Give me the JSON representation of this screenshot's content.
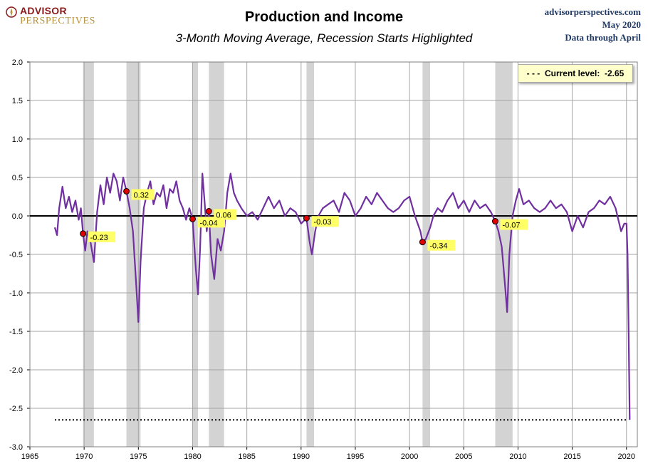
{
  "header": {
    "logo_line1": "ADVISOR",
    "logo_line2": "PERSPECTIVES",
    "title": "Production and Income",
    "subtitle": "3-Month Moving Average, Recession Starts Highlighted",
    "source_site": "advisorperspectives.com",
    "source_date": "May 2020",
    "source_note": "Data through April"
  },
  "legend": {
    "current_prefix": "- - -  Current level:  ",
    "current_value": "-2.65"
  },
  "colors": {
    "line": "#7030a0",
    "recession": "#d3d3d3",
    "label_bg": "#ffff66",
    "marker": "#e00000"
  },
  "chart_data": {
    "type": "line",
    "title": "Production and Income",
    "xlim": [
      1965,
      2021
    ],
    "ylim": [
      -3.0,
      2.0
    ],
    "x_ticks": [
      1965,
      1970,
      1975,
      1980,
      1985,
      1990,
      1995,
      2000,
      2005,
      2010,
      2015,
      2020
    ],
    "y_ticks": [
      -3.0,
      -2.5,
      -2.0,
      -1.5,
      -1.0,
      -0.5,
      0.0,
      0.5,
      1.0,
      1.5,
      2.0
    ],
    "y_tick_labels": [
      "-3.0",
      "-2.5",
      "-2.0",
      "-1.5",
      "-1.0",
      "-0.5",
      "0.0",
      "0.5",
      "1.0",
      "1.5",
      "2.0"
    ],
    "grid": true,
    "current_level": -2.65,
    "recessions": [
      [
        1969.9,
        1970.9
      ],
      [
        1973.9,
        1975.2
      ],
      [
        1980.0,
        1980.5
      ],
      [
        1981.5,
        1982.9
      ],
      [
        1990.5,
        1991.2
      ],
      [
        2001.2,
        2001.9
      ],
      [
        2007.9,
        2009.5
      ]
    ],
    "recession_start_values": [
      {
        "x": 1969.9,
        "y": -0.23,
        "label": "-0.23"
      },
      {
        "x": 1973.9,
        "y": 0.32,
        "label": "0.32"
      },
      {
        "x": 1980.0,
        "y": -0.04,
        "label": "-0.04"
      },
      {
        "x": 1981.5,
        "y": 0.06,
        "label": "0.06"
      },
      {
        "x": 1990.5,
        "y": -0.03,
        "label": "-0.03"
      },
      {
        "x": 2001.2,
        "y": -0.34,
        "label": "-0.34"
      },
      {
        "x": 2007.9,
        "y": -0.07,
        "label": "-0.07"
      }
    ],
    "series": [
      {
        "x": [
          1967.3,
          1967.5,
          1967.7,
          1968.0,
          1968.3,
          1968.6,
          1968.9,
          1969.2,
          1969.5,
          1969.7,
          1969.9,
          1970.1,
          1970.3,
          1970.6,
          1970.9,
          1971.2,
          1971.5,
          1971.8,
          1972.1,
          1972.4,
          1972.7,
          1973.0,
          1973.3,
          1973.6,
          1973.9,
          1974.2,
          1974.5,
          1974.8,
          1975.0,
          1975.2,
          1975.5,
          1975.8,
          1976.1,
          1976.4,
          1976.7,
          1977.0,
          1977.3,
          1977.6,
          1977.9,
          1978.2,
          1978.5,
          1978.8,
          1979.1,
          1979.4,
          1979.7,
          1980.0,
          1980.3,
          1980.5,
          1980.7,
          1980.9,
          1981.1,
          1981.3,
          1981.5,
          1981.7,
          1982.0,
          1982.3,
          1982.6,
          1982.9,
          1983.2,
          1983.5,
          1983.8,
          1984.1,
          1984.5,
          1985.0,
          1985.5,
          1986.0,
          1986.5,
          1987.0,
          1987.5,
          1988.0,
          1988.5,
          1989.0,
          1989.5,
          1990.0,
          1990.5,
          1990.8,
          1991.0,
          1991.3,
          1991.6,
          1992.0,
          1992.5,
          1993.0,
          1993.5,
          1994.0,
          1994.5,
          1995.0,
          1995.5,
          1996.0,
          1996.5,
          1997.0,
          1997.5,
          1998.0,
          1998.5,
          1999.0,
          1999.5,
          2000.0,
          2000.5,
          2001.0,
          2001.2,
          2001.5,
          2001.9,
          2002.2,
          2002.6,
          2003.0,
          2003.5,
          2004.0,
          2004.5,
          2005.0,
          2005.5,
          2006.0,
          2006.5,
          2007.0,
          2007.5,
          2007.9,
          2008.2,
          2008.5,
          2008.8,
          2009.0,
          2009.2,
          2009.5,
          2009.8,
          2010.1,
          2010.5,
          2011.0,
          2011.5,
          2012.0,
          2012.5,
          2013.0,
          2013.5,
          2014.0,
          2014.5,
          2015.0,
          2015.5,
          2016.0,
          2016.5,
          2017.0,
          2017.5,
          2018.0,
          2018.5,
          2019.0,
          2019.5,
          2019.8,
          2020.0,
          2020.1,
          2020.2,
          2020.3
        ],
        "y": [
          -0.15,
          -0.25,
          0.1,
          0.38,
          0.1,
          0.25,
          0.05,
          0.2,
          -0.05,
          0.1,
          -0.23,
          -0.45,
          -0.2,
          -0.35,
          -0.6,
          0.05,
          0.4,
          0.15,
          0.5,
          0.3,
          0.55,
          0.45,
          0.2,
          0.5,
          0.32,
          0.1,
          -0.2,
          -0.9,
          -1.38,
          -0.6,
          0.1,
          0.3,
          0.45,
          0.15,
          0.3,
          0.25,
          0.4,
          0.1,
          0.35,
          0.3,
          0.45,
          0.2,
          0.1,
          -0.05,
          0.1,
          -0.04,
          -0.7,
          -1.02,
          -0.4,
          0.55,
          0.2,
          -0.2,
          0.06,
          -0.5,
          -0.82,
          -0.3,
          -0.45,
          -0.2,
          0.3,
          0.55,
          0.3,
          0.2,
          0.1,
          0.0,
          0.05,
          -0.05,
          0.1,
          0.25,
          0.1,
          0.2,
          0.0,
          0.1,
          0.05,
          -0.1,
          -0.03,
          -0.35,
          -0.5,
          -0.2,
          0.0,
          0.1,
          0.15,
          0.2,
          0.05,
          0.3,
          0.2,
          0.0,
          0.1,
          0.25,
          0.15,
          0.3,
          0.2,
          0.1,
          0.05,
          0.1,
          0.2,
          0.25,
          0.0,
          -0.2,
          -0.34,
          -0.3,
          -0.15,
          0.0,
          0.1,
          0.05,
          0.2,
          0.3,
          0.1,
          0.2,
          0.05,
          0.2,
          0.1,
          0.15,
          0.05,
          -0.07,
          -0.2,
          -0.4,
          -0.9,
          -1.25,
          -0.5,
          0.0,
          0.2,
          0.35,
          0.15,
          0.2,
          0.1,
          0.05,
          0.1,
          0.2,
          0.1,
          0.15,
          0.05,
          -0.2,
          0.0,
          -0.15,
          0.05,
          0.1,
          0.2,
          0.15,
          0.25,
          0.1,
          -0.2,
          -0.1,
          -0.1,
          -0.5,
          -1.5,
          -2.65
        ]
      }
    ]
  }
}
